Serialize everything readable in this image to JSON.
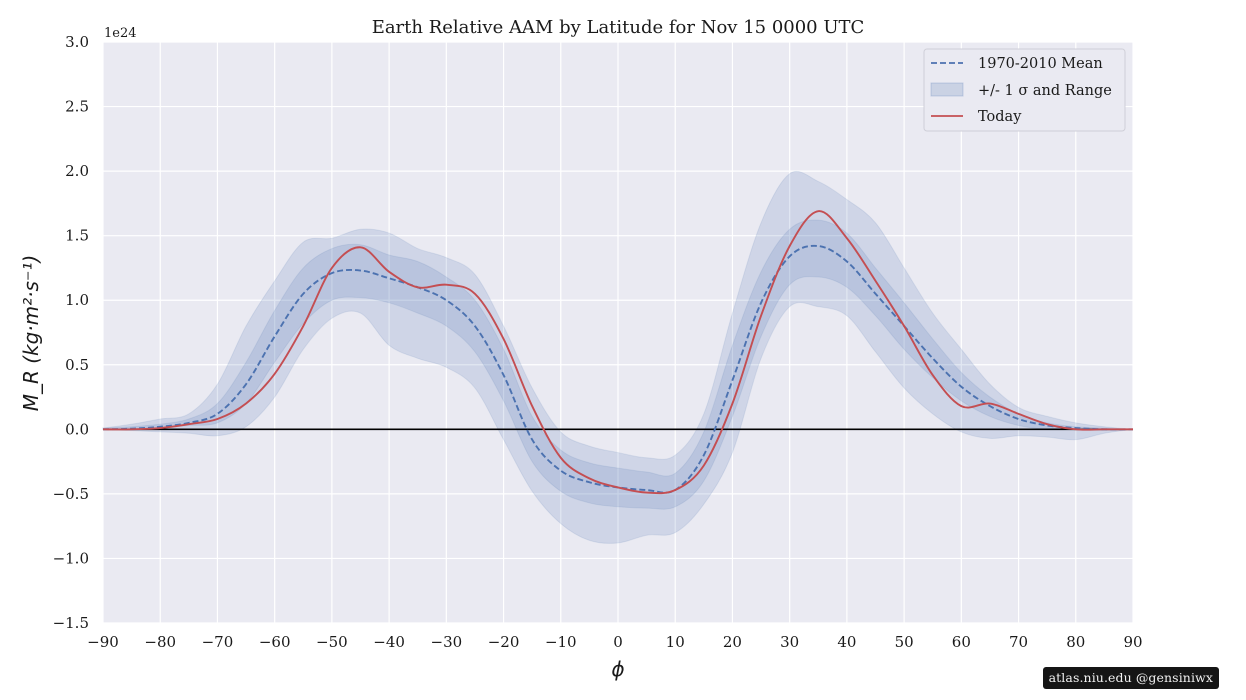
{
  "chart_data": {
    "type": "line",
    "title": "Earth Relative AAM by Latitude for Nov 15 0000 UTC",
    "xlabel": "ϕ",
    "ylabel": "M_R (kg·m²·s⁻¹)",
    "y_scale_note": "1e24",
    "xlim": [
      -90,
      90
    ],
    "ylim": [
      -1.5,
      3.0
    ],
    "xticks": [
      -90,
      -80,
      -70,
      -60,
      -50,
      -40,
      -30,
      -20,
      -10,
      0,
      10,
      20,
      30,
      40,
      50,
      60,
      70,
      80,
      90
    ],
    "xtick_labels": [
      "−90",
      "−80",
      "−70",
      "−60",
      "−50",
      "−40",
      "−30",
      "−20",
      "−10",
      "0",
      "10",
      "20",
      "30",
      "40",
      "50",
      "60",
      "70",
      "80",
      "90"
    ],
    "yticks": [
      -1.5,
      -1.0,
      -0.5,
      0.0,
      0.5,
      1.0,
      1.5,
      2.0,
      2.5,
      3.0
    ],
    "ytick_labels": [
      "−1.5",
      "−1.0",
      "−0.5",
      "0.0",
      "0.5",
      "1.0",
      "1.5",
      "2.0",
      "2.5",
      "3.0"
    ],
    "grid": true,
    "legend_position": "top-right",
    "legend": [
      "1970-2010 Mean",
      "+/- 1 σ and Range",
      "Today"
    ],
    "colors": {
      "mean": "#4c72b0",
      "band": "#4c72b0",
      "today": "#c44e52",
      "plot_bg": "#eaeaf2",
      "zero_line": "#000000"
    },
    "x": [
      -90,
      -85,
      -80,
      -75,
      -70,
      -65,
      -60,
      -55,
      -50,
      -45,
      -40,
      -35,
      -30,
      -25,
      -20,
      -15,
      -10,
      -5,
      0,
      5,
      10,
      15,
      20,
      25,
      30,
      35,
      40,
      45,
      50,
      55,
      60,
      65,
      70,
      75,
      80,
      85,
      90
    ],
    "series": [
      {
        "name": "1970-2010 Mean",
        "style": "dashed",
        "values": [
          0.0,
          0.005,
          0.02,
          0.05,
          0.12,
          0.35,
          0.72,
          1.05,
          1.21,
          1.23,
          1.17,
          1.1,
          1.0,
          0.8,
          0.42,
          -0.08,
          -0.32,
          -0.41,
          -0.45,
          -0.47,
          -0.47,
          -0.2,
          0.38,
          0.98,
          1.34,
          1.42,
          1.3,
          1.05,
          0.8,
          0.55,
          0.33,
          0.18,
          0.08,
          0.03,
          0.01,
          0.0,
          0.0
        ]
      },
      {
        "name": "Today",
        "style": "solid",
        "values": [
          0.0,
          0.0,
          0.01,
          0.04,
          0.08,
          0.2,
          0.43,
          0.8,
          1.25,
          1.41,
          1.22,
          1.1,
          1.12,
          1.05,
          0.7,
          0.18,
          -0.22,
          -0.38,
          -0.45,
          -0.49,
          -0.47,
          -0.28,
          0.2,
          0.88,
          1.42,
          1.69,
          1.48,
          1.15,
          0.8,
          0.42,
          0.18,
          0.2,
          0.12,
          0.04,
          0.0,
          0.0,
          0.0
        ]
      }
    ],
    "bands": [
      {
        "name": "+/- 1 σ",
        "lower": [
          0.0,
          0.0,
          0.01,
          0.03,
          0.05,
          0.2,
          0.52,
          0.82,
          1.0,
          1.02,
          0.98,
          0.9,
          0.8,
          0.6,
          0.22,
          -0.25,
          -0.48,
          -0.57,
          -0.6,
          -0.61,
          -0.6,
          -0.4,
          0.1,
          0.72,
          1.12,
          1.18,
          1.1,
          0.88,
          0.62,
          0.4,
          0.22,
          0.1,
          0.03,
          0.0,
          0.0,
          0.0,
          0.0
        ],
        "upper": [
          0.01,
          0.02,
          0.04,
          0.08,
          0.2,
          0.52,
          0.92,
          1.25,
          1.4,
          1.43,
          1.35,
          1.3,
          1.18,
          1.0,
          0.62,
          0.1,
          -0.16,
          -0.26,
          -0.3,
          -0.33,
          -0.34,
          -0.02,
          0.65,
          1.22,
          1.55,
          1.62,
          1.52,
          1.25,
          0.98,
          0.7,
          0.44,
          0.25,
          0.12,
          0.05,
          0.02,
          0.01,
          0.0
        ]
      },
      {
        "name": "Range",
        "lower": [
          0.0,
          -0.01,
          -0.02,
          -0.03,
          -0.05,
          0.02,
          0.25,
          0.62,
          0.86,
          0.9,
          0.65,
          0.55,
          0.48,
          0.32,
          -0.08,
          -0.48,
          -0.73,
          -0.86,
          -0.88,
          -0.82,
          -0.8,
          -0.58,
          -0.18,
          0.55,
          0.95,
          0.95,
          0.88,
          0.6,
          0.32,
          0.12,
          -0.02,
          -0.07,
          -0.05,
          -0.06,
          -0.08,
          -0.03,
          0.0
        ],
        "upper": [
          0.01,
          0.04,
          0.08,
          0.12,
          0.35,
          0.8,
          1.15,
          1.45,
          1.48,
          1.55,
          1.52,
          1.4,
          1.33,
          1.2,
          0.8,
          0.32,
          -0.02,
          -0.13,
          -0.18,
          -0.22,
          -0.2,
          0.12,
          0.9,
          1.6,
          1.98,
          1.92,
          1.78,
          1.6,
          1.25,
          0.9,
          0.62,
          0.35,
          0.17,
          0.1,
          0.05,
          0.02,
          0.0
        ]
      }
    ]
  },
  "credit": "atlas.niu.edu  @gensiniwx"
}
